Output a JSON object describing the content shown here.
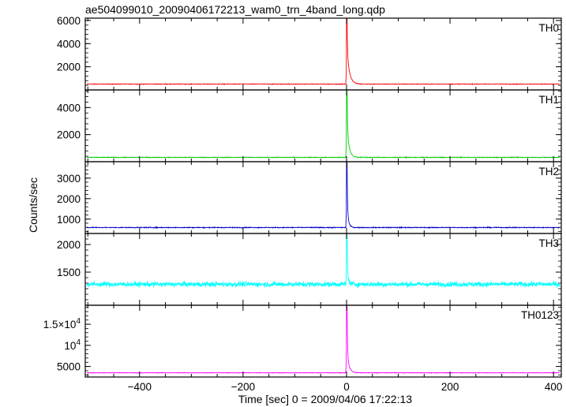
{
  "chart_data": {
    "type": "line",
    "title": "ae504099010_20090406172213_wam0_trn_4band_long.qdp",
    "xlabel": "Time [sec] 0 = 2009/04/06 17:22:13",
    "ylabel": "Counts/sec",
    "xlim": [
      -505,
      415
    ],
    "xticks": [
      -400,
      -200,
      0,
      200,
      400
    ],
    "xtick_labels": [
      "−400",
      "−200",
      "0",
      "200",
      "400"
    ],
    "grid": false,
    "panels": [
      {
        "name": "TH0",
        "color": "#ff0000",
        "ylim": [
          0,
          6200
        ],
        "yticks": [
          2000,
          4000,
          6000
        ],
        "ytick_labels": [
          "2000",
          "4000",
          "6000"
        ],
        "baseline": 500,
        "noise": 25,
        "peak": 6200,
        "shoulder": 3200,
        "decay_sec": 5
      },
      {
        "name": "TH1",
        "color": "#00cc00",
        "ylim": [
          0,
          5300
        ],
        "yticks": [
          2000,
          4000
        ],
        "ytick_labels": [
          "2000",
          "4000"
        ],
        "baseline": 320,
        "noise": 25,
        "peak": 5200,
        "shoulder": 2500,
        "decay_sec": 4
      },
      {
        "name": "TH2",
        "color": "#0000cc",
        "ylim": [
          300,
          3800
        ],
        "yticks": [
          1000,
          2000,
          3000
        ],
        "ytick_labels": [
          "1000",
          "2000",
          "3000"
        ],
        "baseline": 590,
        "noise": 20,
        "peak": 3800,
        "shoulder": 1400,
        "decay_sec": 3
      },
      {
        "name": "TH3",
        "color": "#00ffff",
        "ylim": [
          900,
          2200
        ],
        "yticks": [
          1500,
          2000
        ],
        "ytick_labels": [
          "1500",
          "2000"
        ],
        "baseline": 1280,
        "noise": 45,
        "peak": 2200,
        "shoulder": 1450,
        "decay_sec": 3
      },
      {
        "name": "TH0123",
        "color": "#ff00ff",
        "ylim": [
          2500,
          19500
        ],
        "yticks": [
          5000,
          10000,
          15000
        ],
        "ytick_labels": [
          "5000",
          "10^4",
          "1.5×10^4"
        ],
        "baseline": 3500,
        "noise": 60,
        "peak": 19500,
        "shoulder": 8000,
        "decay_sec": 4
      }
    ]
  }
}
